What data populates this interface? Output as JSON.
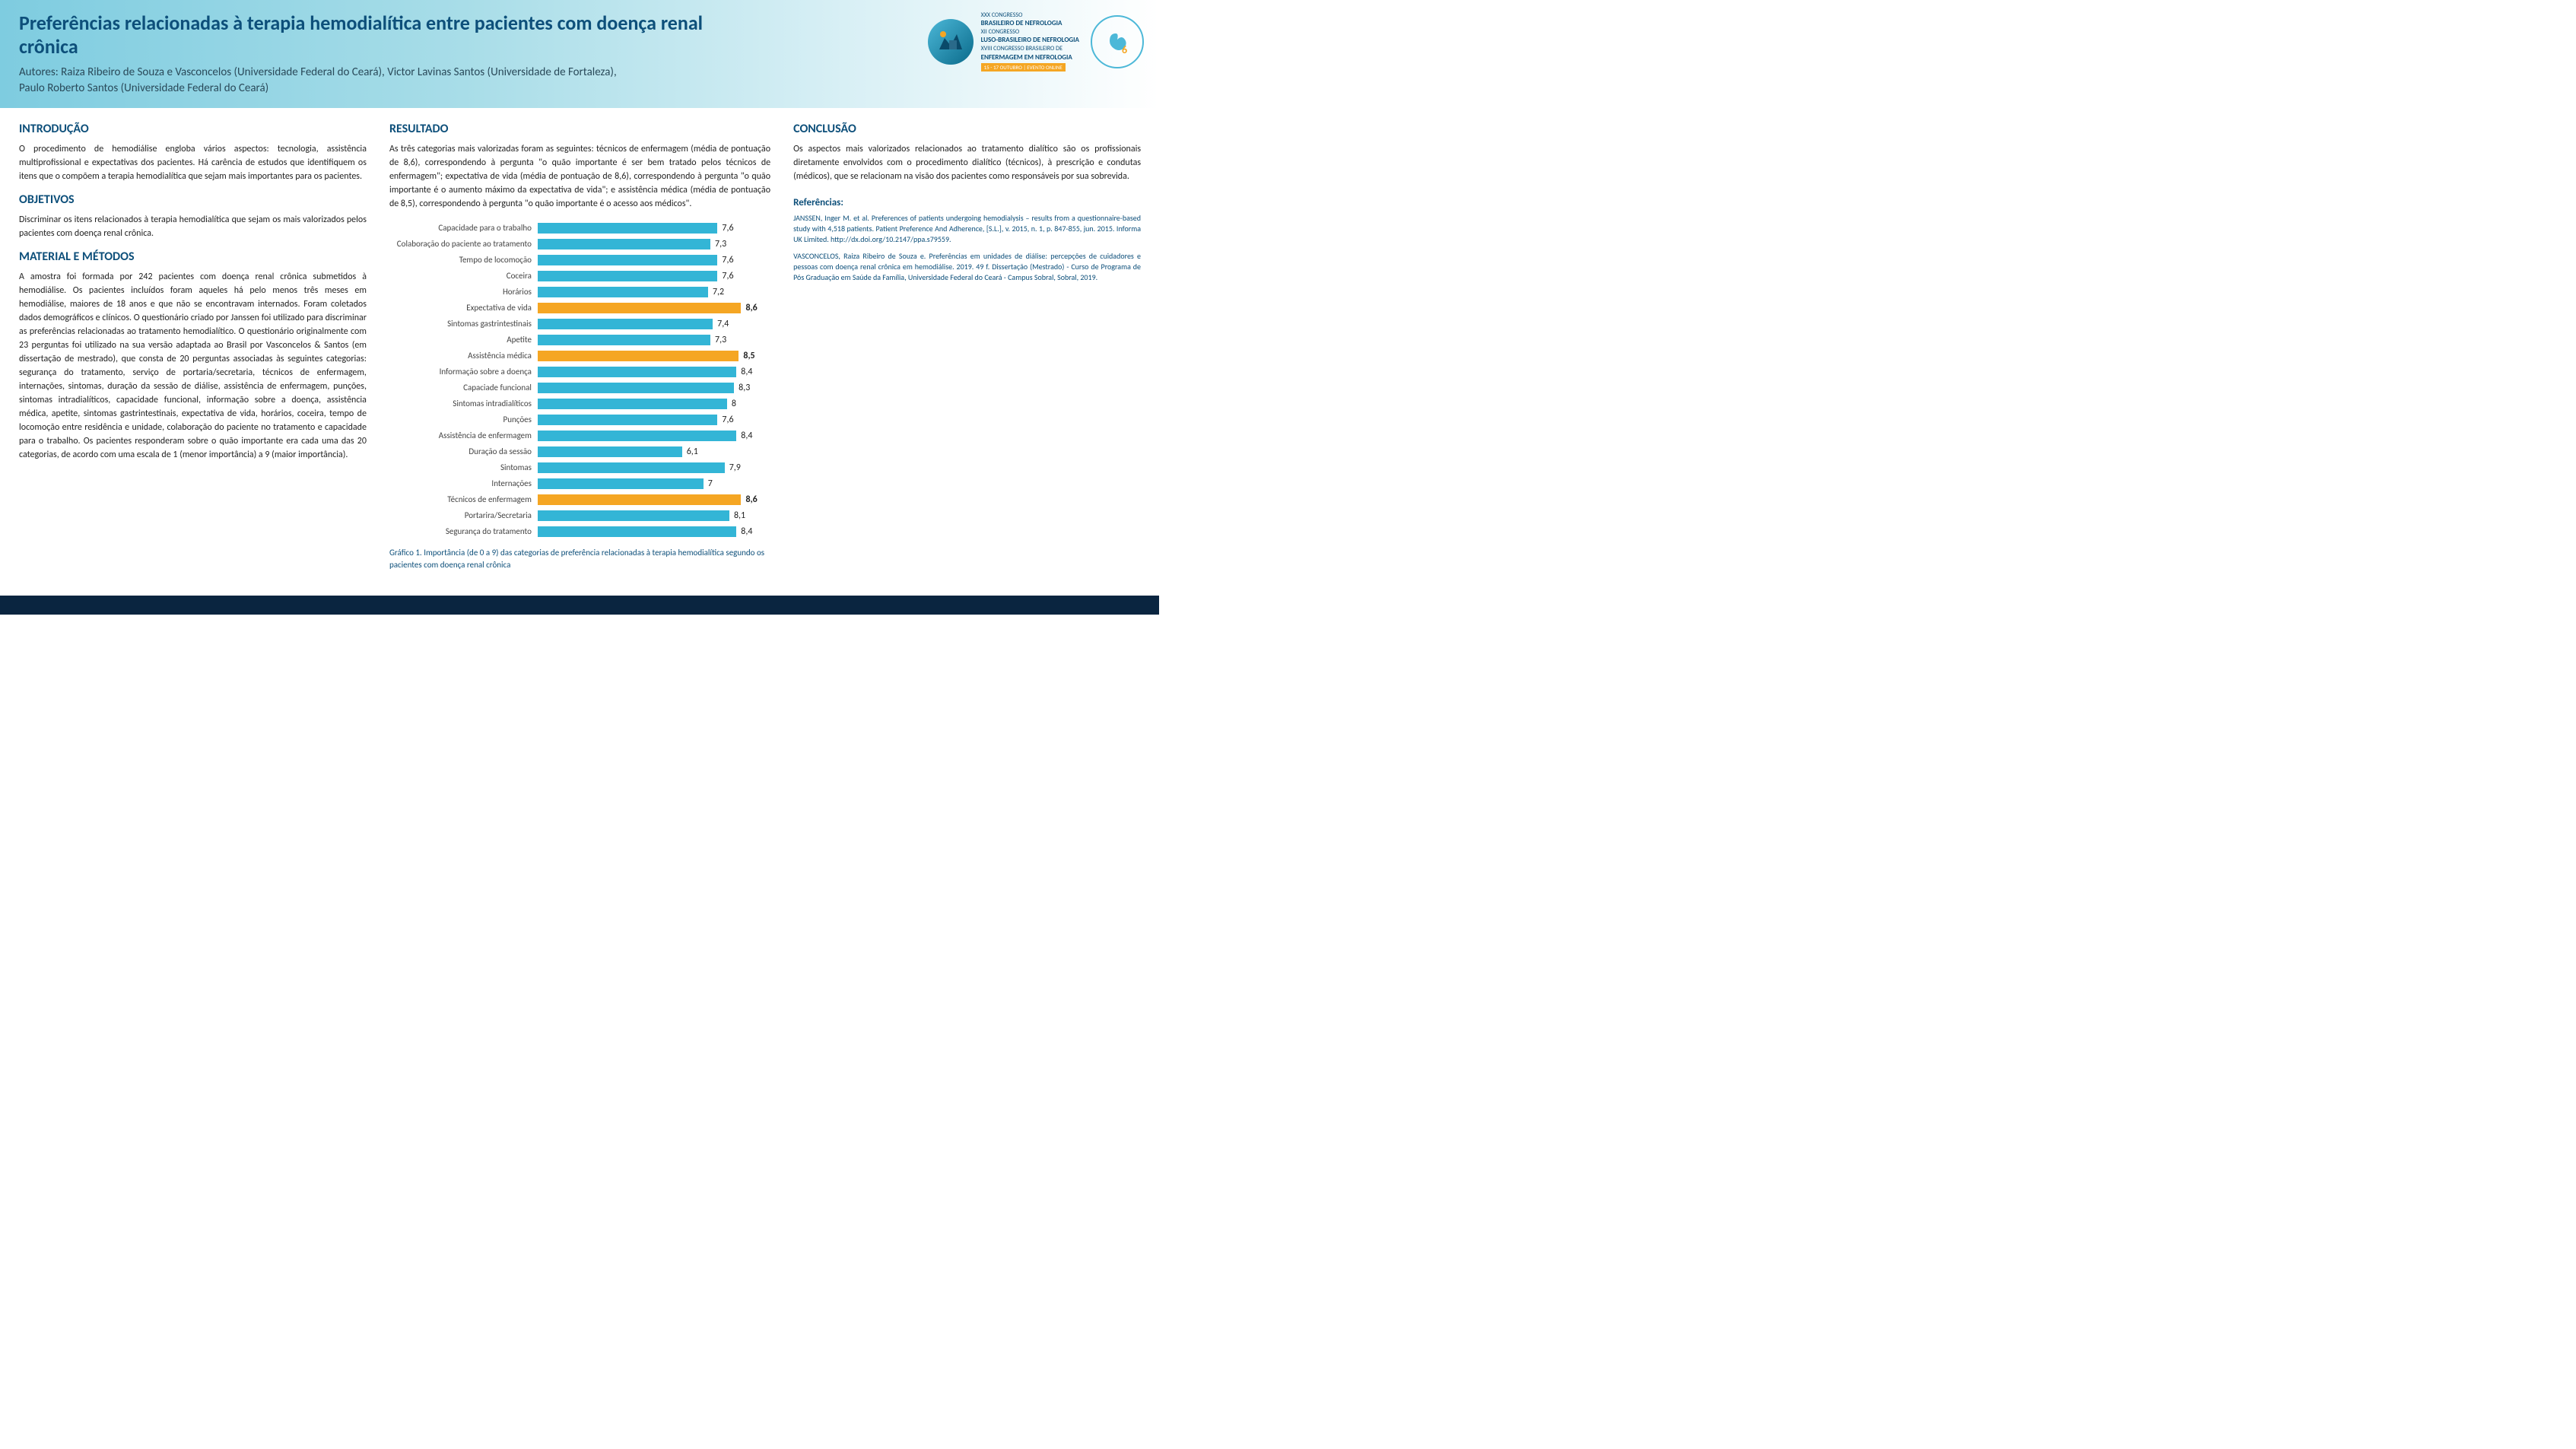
{
  "header": {
    "title": "Preferências relacionadas à terapia hemodialítica entre pacientes com doença renal crônica",
    "authors": "Autores: Raiza Ribeiro de Souza e Vasconcelos (Universidade Federal do Ceará), Victor Lavinas Santos (Universidade de Fortaleza), Paulo Roberto Santos (Universidade Federal do Ceará)",
    "congress_lines": [
      "XXX CONGRESSO",
      "BRASILEIRO DE NEFROLOGIA",
      "XII CONGRESSO",
      "LUSO-BRASILEIRO DE NEFROLOGIA",
      "XVIII CONGRESSO BRASILEIRO DE",
      "ENFERMAGEM EM NEFROLOGIA"
    ],
    "congress_date": "15 - 17 OUTUBRO | EVENTO ONLINE"
  },
  "sections": {
    "intro_h": "INTRODUÇÃO",
    "intro": "O procedimento de hemodiálise engloba vários aspectos: tecnologia, assistência multiprofissional e expectativas dos pacientes. Há carência de estudos que identifiquem os itens que o compõem a terapia hemodialítica que sejam mais importantes para os pacientes.",
    "obj_h": "OBJETIVOS",
    "obj": "Discriminar os itens relacionados à terapia hemodialítica que sejam os mais valorizados pelos pacientes com doença renal crônica.",
    "mat_h": "MATERIAL E MÉTODOS",
    "mat": "A amostra foi formada por 242 pacientes com doença renal crônica submetidos à hemodiálise. Os pacientes incluídos foram aqueles há pelo menos três meses em hemodiálise, maiores de 18 anos e que não se encontravam internados. Foram coletados dados demográficos e clínicos. O questionário criado por Janssen foi utilizado para discriminar as preferências relacionadas ao tratamento hemodialítico. O questionário originalmente com 23 perguntas foi utilizado na sua versão adaptada ao Brasil por Vasconcelos & Santos (em dissertação de mestrado), que consta de 20 perguntas associadas às seguintes categorias: segurança do tratamento, serviço de portaria/secretaria, técnicos de enfermagem, internações, sintomas, duração da sessão de diálise, assistência de enfermagem, punções, sintomas intradialíticos, capacidade funcional, informação sobre a doença, assistência médica, apetite, sintomas gastrintestinais, expectativa de vida, horários, coceira, tempo de locomoção entre residência e unidade, colaboração do paciente no tratamento e capacidade para o trabalho. Os pacientes responderam sobre o quão importante era cada uma das 20 categorias, de acordo com uma escala de 1 (menor importância) a 9 (maior importância).",
    "res_h": "RESULTADO",
    "res": "As três categorias mais valorizadas foram as seguintes: técnicos de enfermagem (média de pontuação de 8,6), correspondendo à pergunta \"o quão importante é ser bem tratado pelos técnicos de enfermagem\"; expectativa de vida (média de pontuação de 8,6), correspondendo à pergunta \"o quão importante é o aumento máximo da expectativa de vida\"; e assistência médica (média de pontuação de 8,5), correspondendo à pergunta \"o quão importante é o acesso aos médicos\".",
    "con_h": "CONCLUSÃO",
    "con": "Os aspectos mais valorizados relacionados ao tratamento dialítico são os profissionais diretamente envolvidos com o procedimento dialítico (técnicos), à prescrição e condutas (médicos), que se relacionam na visão dos pacientes como responsáveis por sua sobrevida.",
    "ref_h": "Referências:",
    "ref1": "JANSSEN, Inger M. et al. Preferences of patients undergoing hemodialysis – results from a questionnaire-based study with 4,518 patients. Patient Preference And Adherence, [S.L.], v. 2015, n. 1, p. 847-855, jun. 2015. Informa UK Limited. http://dx.doi.org/10.2147/ppa.s79559.",
    "ref2": "VASCONCELOS, Raiza Ribeiro de Souza e. Preferências em unidades de diálise: percepções de cuidadores e pessoas com doença renal crônica em hemodiálise. 2019. 49 f. Dissertação (Mestrado) - Curso de Programa de Pós Graduação em Saúde da Família, Universidade Federal do Ceará - Campus Sobral, Sobral, 2019."
  },
  "chart": {
    "type": "bar",
    "xmax": 9,
    "bar_color_default": "#33b5d6",
    "bar_color_highlight": "#f5a623",
    "caption": "Gráfico 1. Importância (de 0 a 9) das categorias de preferência relacionadas à terapia hemodialítica segundo os pacientes com doença renal crônica",
    "rows": [
      {
        "label": "Capacidade para o trabalho",
        "value": 7.6,
        "display": "7,6",
        "highlight": false
      },
      {
        "label": "Colaboração do paciente ao tratamento",
        "value": 7.3,
        "display": "7,3",
        "highlight": false
      },
      {
        "label": "Tempo de locomoção",
        "value": 7.6,
        "display": "7,6",
        "highlight": false
      },
      {
        "label": "Coceira",
        "value": 7.6,
        "display": "7,6",
        "highlight": false
      },
      {
        "label": "Horários",
        "value": 7.2,
        "display": "7,2",
        "highlight": false
      },
      {
        "label": "Expectativa de vida",
        "value": 8.6,
        "display": "8,6",
        "highlight": true
      },
      {
        "label": "Sintomas gastrintestinais",
        "value": 7.4,
        "display": "7,4",
        "highlight": false
      },
      {
        "label": "Apetite",
        "value": 7.3,
        "display": "7,3",
        "highlight": false
      },
      {
        "label": "Assistência médica",
        "value": 8.5,
        "display": "8,5",
        "highlight": true
      },
      {
        "label": "Informação sobre a doença",
        "value": 8.4,
        "display": "8,4",
        "highlight": false
      },
      {
        "label": "Capaciade funcional",
        "value": 8.3,
        "display": "8,3",
        "highlight": false
      },
      {
        "label": "Sintomas intradialíticos",
        "value": 8.0,
        "display": "8",
        "highlight": false
      },
      {
        "label": "Punções",
        "value": 7.6,
        "display": "7,6",
        "highlight": false
      },
      {
        "label": "Assistência de enfermagem",
        "value": 8.4,
        "display": "8,4",
        "highlight": false
      },
      {
        "label": "Duração da sessão",
        "value": 6.1,
        "display": "6,1",
        "highlight": false
      },
      {
        "label": "Sintomas",
        "value": 7.9,
        "display": "7,9",
        "highlight": false
      },
      {
        "label": "Internações",
        "value": 7.0,
        "display": "7",
        "highlight": false
      },
      {
        "label": "Técnicos de enfermagem",
        "value": 8.6,
        "display": "8,6",
        "highlight": true
      },
      {
        "label": "Portarira/Secretaria",
        "value": 8.1,
        "display": "8,1",
        "highlight": false
      },
      {
        "label": "Segurança do tratamento",
        "value": 8.4,
        "display": "8,4",
        "highlight": false
      }
    ]
  }
}
